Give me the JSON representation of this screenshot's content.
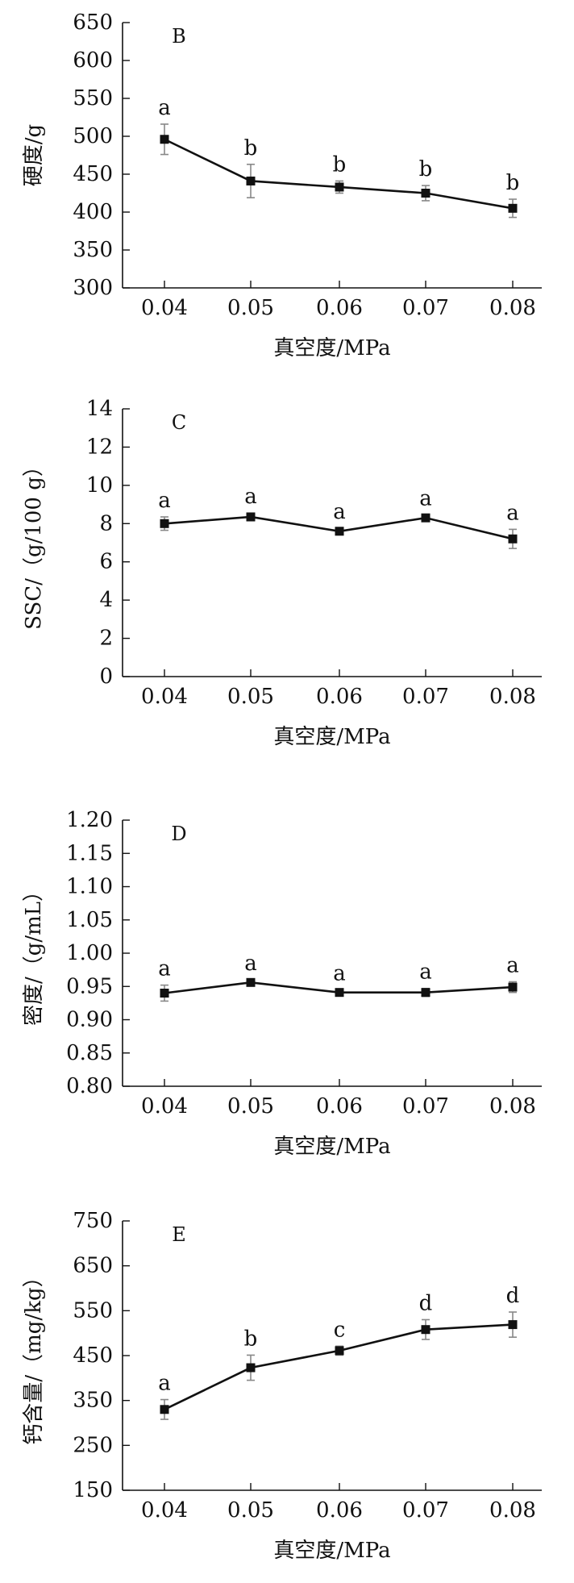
{
  "chart_data": [
    {
      "type": "line",
      "panel": "B",
      "xlabel": "真空度/MPa",
      "ylabel": "硬度/g",
      "categories": [
        "0.04",
        "0.05",
        "0.06",
        "0.07",
        "0.08"
      ],
      "ylim": [
        300,
        650
      ],
      "yticks": [
        "300",
        "350",
        "400",
        "450",
        "500",
        "550",
        "600",
        "650"
      ],
      "values": [
        496,
        441,
        433,
        425,
        405
      ],
      "errors": [
        20,
        22,
        8,
        10,
        12
      ],
      "significance": [
        "a",
        "b",
        "b",
        "b",
        "b"
      ],
      "grid": false
    },
    {
      "type": "line",
      "panel": "C",
      "xlabel": "真空度/MPa",
      "ylabel": "SSC/（g/100 g）",
      "categories": [
        "0.04",
        "0.05",
        "0.06",
        "0.07",
        "0.08"
      ],
      "ylim": [
        0,
        14
      ],
      "yticks": [
        "0",
        "2",
        "4",
        "6",
        "8",
        "10",
        "12",
        "14"
      ],
      "values": [
        8.0,
        8.35,
        7.6,
        8.3,
        7.2
      ],
      "errors": [
        0.35,
        0.2,
        0.15,
        0.15,
        0.5
      ],
      "significance": [
        "a",
        "a",
        "a",
        "a",
        "a"
      ],
      "grid": false
    },
    {
      "type": "line",
      "panel": "D",
      "xlabel": "真空度/MPa",
      "ylabel": "密度/（g/mL）",
      "categories": [
        "0.04",
        "0.05",
        "0.06",
        "0.07",
        "0.08"
      ],
      "ylim": [
        0.8,
        1.2
      ],
      "yticks": [
        "0.80",
        "0.85",
        "0.90",
        "0.95",
        "1.00",
        "1.05",
        "1.10",
        "1.15",
        "1.20"
      ],
      "values": [
        0.94,
        0.956,
        0.941,
        0.941,
        0.949
      ],
      "errors": [
        0.012,
        0.004,
        0.004,
        0.006,
        0.008
      ],
      "significance": [
        "a",
        "a",
        "a",
        "a",
        "a"
      ],
      "grid": false
    },
    {
      "type": "line",
      "panel": "E",
      "xlabel": "真空度/MPa",
      "ylabel": "钙含量/（mg/kg）",
      "categories": [
        "0.04",
        "0.05",
        "0.06",
        "0.07",
        "0.08"
      ],
      "ylim": [
        150,
        750
      ],
      "yticks": [
        "150",
        "250",
        "350",
        "450",
        "550",
        "650",
        "750"
      ],
      "values": [
        330,
        423,
        461,
        508,
        519
      ],
      "errors": [
        22,
        28,
        10,
        22,
        28
      ],
      "significance": [
        "a",
        "b",
        "c",
        "d",
        "d"
      ],
      "grid": false
    }
  ]
}
